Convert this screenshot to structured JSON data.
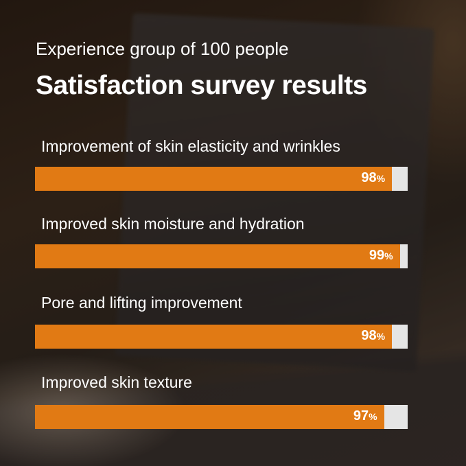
{
  "header": {
    "subtitle": "Experience group of 100 people",
    "title": "Satisfaction survey results"
  },
  "colors": {
    "bar": "#e17a14",
    "track": "#e5e5e5",
    "text": "#ffffff"
  },
  "chart_data": {
    "type": "bar",
    "orientation": "horizontal",
    "title": "Satisfaction survey results",
    "subtitle": "Experience group of 100 people",
    "categories": [
      "Improvement of skin elasticity and wrinkles",
      "Improved skin moisture and hydration",
      "Pore and lifting improvement",
      "Improved skin texture"
    ],
    "values": [
      98,
      99,
      98,
      97
    ],
    "value_labels": [
      "98",
      "99",
      "98",
      "97"
    ],
    "unit": "%",
    "xlim": [
      0,
      100
    ],
    "grid": false
  }
}
